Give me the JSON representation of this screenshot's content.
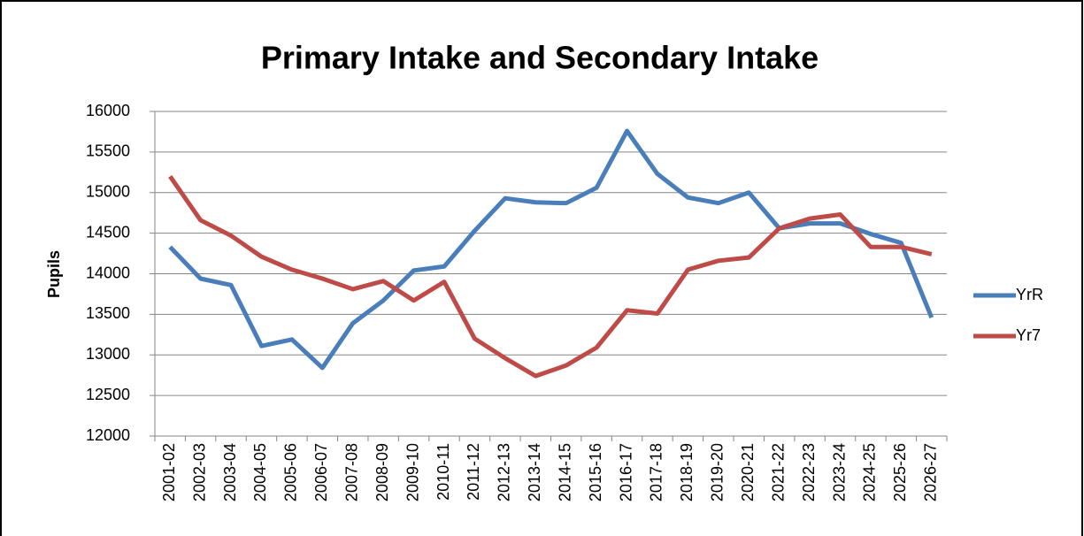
{
  "chart_data": {
    "type": "line",
    "title": "Primary Intake and Secondary Intake",
    "y_label": "Pupils",
    "categories": [
      "2001-02",
      "2002-03",
      "2003-04",
      "2004-05",
      "2005-06",
      "2006-07",
      "2007-08",
      "2008-09",
      "2009-10",
      "2010-11",
      "2011-12",
      "2012-13",
      "2013-14",
      "2014-15",
      "2015-16",
      "2016-17",
      "2017-18",
      "2018-19",
      "2019-20",
      "2020-21",
      "2021-22",
      "2022-23",
      "2023-24",
      "2024-25",
      "2025-26",
      "2026-27"
    ],
    "series": [
      {
        "name": "YrR",
        "color": "#4a7ebb",
        "values": [
          14330,
          13940,
          13860,
          13110,
          13190,
          12840,
          13390,
          13670,
          14040,
          14090,
          14530,
          14930,
          14880,
          14870,
          15060,
          15760,
          15230,
          14940,
          14870,
          15000,
          14560,
          14620,
          14620,
          14490,
          14380,
          13460
        ]
      },
      {
        "name": "Yr7",
        "color": "#be4b48",
        "values": [
          15200,
          14660,
          14470,
          14210,
          14050,
          13940,
          13810,
          13910,
          13670,
          13900,
          13200,
          12960,
          12740,
          12870,
          13090,
          13550,
          13510,
          14050,
          14160,
          14200,
          14560,
          14680,
          14730,
          14330,
          14330,
          14240
        ]
      }
    ],
    "ylim": [
      12000,
      16000
    ],
    "yticks": [
      12000,
      12500,
      13000,
      13500,
      14000,
      14500,
      15000,
      15500,
      16000
    ],
    "grid": true,
    "legend": "right"
  }
}
